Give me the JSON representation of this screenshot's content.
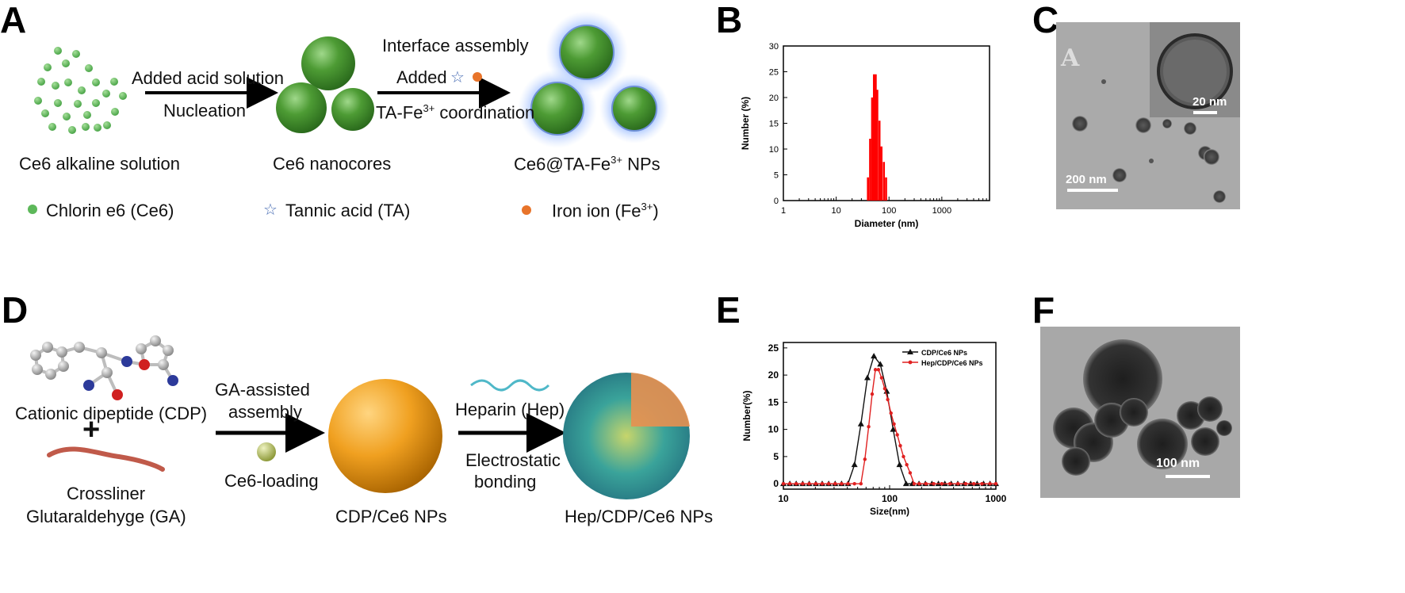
{
  "panels": {
    "a": "A",
    "b": "B",
    "c": "C",
    "d": "D",
    "e": "E",
    "f": "F"
  },
  "schemeA": {
    "step1_top": "Added acid solution",
    "step1_bottom": "Nucleation",
    "step2_top": "Interface assembly",
    "step2_added": "Added",
    "step2_bottom_pre": "TA-Fe",
    "step2_bottom_sup": "3+",
    "step2_bottom_post": " coordination",
    "label_start": "Ce6 alkaline solution",
    "label_mid": "Ce6 nanocores",
    "label_end_pre": "Ce6@TA-Fe",
    "label_end_sup": "3+",
    "label_end_post": " NPs",
    "legend_ce6": "Chlorin e6 (Ce6)",
    "legend_ta": "Tannic acid (TA)",
    "legend_fe_pre": "Iron ion (Fe",
    "legend_fe_sup": "3+",
    "legend_fe_post": ")"
  },
  "schemeD": {
    "cdp": "Cationic dipeptide (CDP)",
    "plus": "+",
    "crosslinker1": "Crossliner",
    "crosslinker2": "Glutaraldehyge (GA)",
    "ga_assist1": "GA-assisted",
    "ga_assist2": "assembly",
    "loading": "Ce6-loading",
    "heparin": "Heparin (Hep)",
    "electro1": "Electrostatic",
    "electro2": "bonding",
    "np1": "CDP/Ce6 NPs",
    "np2": "Hep/CDP/Ce6 NPs"
  },
  "temC": {
    "inset_letter": "A",
    "scale_large": "20 nm",
    "scale_main": "200 nm"
  },
  "temF": {
    "scale": "100 nm"
  },
  "colors": {
    "ce6_green": "#5db85a",
    "sphere_green": "#3f8f2b",
    "fe_orange": "#e8742a",
    "ta_blue": "#4b6fb5",
    "glow": "#7fa8ff",
    "bar_red": "#ff0000",
    "hep_red": "#e02020",
    "cdp_gold": "#f0a020"
  },
  "chart_data": [
    {
      "type": "bar",
      "panel": "B",
      "title": "",
      "xlabel": "Diameter (nm)",
      "ylabel": "Number (%)",
      "xscale": "log",
      "xlim": [
        1,
        8000
      ],
      "ylim": [
        0,
        30
      ],
      "xticks": [
        1,
        10,
        100,
        1000
      ],
      "xtick_labels": [
        "1",
        "10",
        "100",
        "1000"
      ],
      "yticks": [
        0,
        5,
        10,
        15,
        20,
        25,
        30
      ],
      "ytick_labels": [
        "0",
        "5",
        "10",
        "15",
        "20",
        "25",
        "30"
      ],
      "x": [
        40,
        44,
        48,
        52,
        56,
        60,
        66,
        72,
        80,
        88
      ],
      "values": [
        4.5,
        12,
        20,
        24.5,
        24.5,
        21.5,
        15.5,
        10.5,
        7.5,
        4.5
      ]
    },
    {
      "type": "line",
      "panel": "E",
      "title": "",
      "xlabel": "Size(nm)",
      "ylabel": "Number(%)",
      "xscale": "log",
      "xlim": [
        10,
        1000
      ],
      "ylim": [
        -1,
        26
      ],
      "xticks": [
        10,
        100,
        1000
      ],
      "xtick_labels": [
        "10",
        "100",
        "1000"
      ],
      "yticks": [
        0,
        5,
        10,
        15,
        20,
        25
      ],
      "ytick_labels": [
        "0",
        "5",
        "10",
        "15",
        "20",
        "25"
      ],
      "legend_position": "top-right",
      "series": [
        {
          "name": "CDP/Ce6 NPs",
          "color": "#111111",
          "marker": "triangle",
          "x": [
            10,
            11.5,
            13.2,
            15.2,
            17.5,
            20.2,
            23.2,
            26.7,
            30.7,
            35.3,
            40.6,
            46.7,
            53.7,
            61.8,
            71.1,
            81.7,
            94,
            108,
            124,
            143,
            164,
            189,
            217,
            250,
            288,
            331,
            380,
            438,
            503,
            579,
            666,
            766,
            881,
            1000
          ],
          "y": [
            0,
            0,
            0,
            0,
            0,
            0,
            0,
            0,
            0,
            0,
            0,
            3.5,
            11,
            19.5,
            23.5,
            22,
            17,
            10,
            3.5,
            0,
            0,
            0,
            0,
            0,
            0,
            0,
            0,
            0,
            0,
            0,
            0,
            0,
            0,
            0
          ]
        },
        {
          "name": "Hep/CDP/Ce6 NPs",
          "color": "#e02020",
          "marker": "circle",
          "x": [
            10,
            11.5,
            13.2,
            15.2,
            17.5,
            20.2,
            23.2,
            26.7,
            30.7,
            35.3,
            40.6,
            46.7,
            53.7,
            58.5,
            63.5,
            68.5,
            73.5,
            78.5,
            84,
            90,
            96,
            103,
            110,
            118,
            126,
            135,
            145,
            156,
            170,
            190,
            220,
            260,
            310,
            370,
            440,
            520,
            620,
            740,
            880,
            1000
          ],
          "y": [
            0,
            0,
            0,
            0,
            0,
            0,
            0,
            0,
            0,
            0,
            0,
            0,
            0,
            4.5,
            10.5,
            16.5,
            21,
            21,
            19.5,
            17.5,
            15.5,
            13,
            11,
            9,
            7,
            5,
            3.5,
            2,
            0,
            0,
            0,
            0,
            0,
            0,
            0,
            0,
            0,
            0,
            0,
            0
          ]
        }
      ]
    }
  ]
}
